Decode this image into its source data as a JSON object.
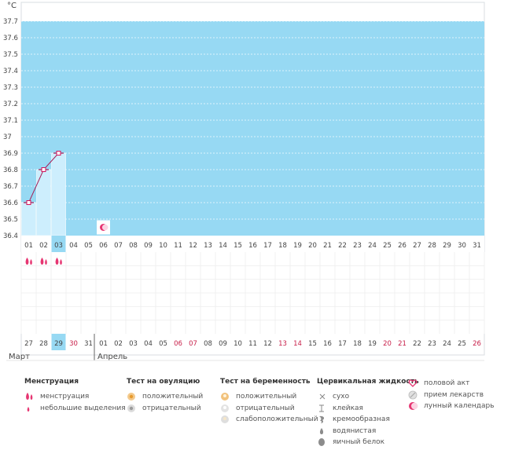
{
  "chart_data": {
    "type": "line",
    "unit_label": "°C",
    "y_ticks": [
      "36.4",
      "36.5",
      "36.6",
      "36.7",
      "36.8",
      "36.9",
      "37",
      "37.1",
      "37.2",
      "37.3",
      "37.4",
      "37.5",
      "37.6",
      "37.7"
    ],
    "ylim": [
      36.4,
      37.7
    ],
    "cycle_days": [
      "01",
      "02",
      "03",
      "04",
      "05",
      "06",
      "07",
      "08",
      "09",
      "10",
      "11",
      "12",
      "13",
      "14",
      "15",
      "16",
      "17",
      "18",
      "19",
      "20",
      "21",
      "22",
      "23",
      "24",
      "25",
      "26",
      "27",
      "28",
      "29",
      "30",
      "31"
    ],
    "temperature_values": [
      36.6,
      36.8,
      36.9
    ],
    "current_day_index": 2,
    "lunar_marker_day_index": 5,
    "lunar_marker_value": 36.45,
    "menstruation_days": [
      0,
      1,
      2
    ],
    "calendar_dates": [
      "27",
      "28",
      "29",
      "30",
      "31",
      "01",
      "02",
      "03",
      "04",
      "05",
      "06",
      "07",
      "08",
      "09",
      "10",
      "11",
      "12",
      "13",
      "14",
      "15",
      "16",
      "17",
      "18",
      "19",
      "20",
      "21",
      "22",
      "23",
      "24",
      "25",
      "26"
    ],
    "weekend_dates": [
      3,
      10,
      11,
      17,
      18,
      24,
      25,
      30
    ],
    "months": [
      {
        "label": "Март",
        "start_index": 0
      },
      {
        "label": "Апрель",
        "start_index": 5
      }
    ],
    "colors": {
      "plot_bg": "#97d9f3",
      "bar_fill": "#cdeefd",
      "line": "#a61e57",
      "marker_edge": "#d2125a",
      "current_day": "#97d9f3",
      "weekend_text": "#c8204a",
      "menstruation": "#e63672"
    }
  },
  "legend": {
    "groups": [
      {
        "title": "Менструация",
        "items": [
          {
            "label": "менструация",
            "icon": "menstruation-icon"
          },
          {
            "label": "небольшие выделения",
            "icon": "spotting-icon"
          }
        ]
      },
      {
        "title": "Тест на овуляцию",
        "items": [
          {
            "label": "положительный",
            "icon": "ovulation-positive-icon"
          },
          {
            "label": "отрицательный",
            "icon": "ovulation-negative-icon"
          }
        ]
      },
      {
        "title": "Тест на беременность",
        "items": [
          {
            "label": "положительный",
            "icon": "pregnancy-positive-icon"
          },
          {
            "label": "отрицательный",
            "icon": "pregnancy-negative-icon"
          },
          {
            "label": "слабоположительный",
            "icon": "pregnancy-weak-positive-icon"
          }
        ]
      },
      {
        "title": "Цервикальная жидкость",
        "items": [
          {
            "label": "сухо",
            "icon": "dry-icon"
          },
          {
            "label": "клейкая",
            "icon": "sticky-icon"
          },
          {
            "label": "кремообразная",
            "icon": "creamy-icon"
          },
          {
            "label": "водянистая",
            "icon": "watery-icon"
          },
          {
            "label": "яичный белок",
            "icon": "egg-white-icon"
          }
        ]
      },
      {
        "title": "",
        "items": [
          {
            "label": "половой акт",
            "icon": "intercourse-heart-icon"
          },
          {
            "label": "прием лекарств",
            "icon": "medication-icon"
          },
          {
            "label": "лунный календарь",
            "icon": "lunar-calendar-icon"
          }
        ]
      }
    ]
  }
}
